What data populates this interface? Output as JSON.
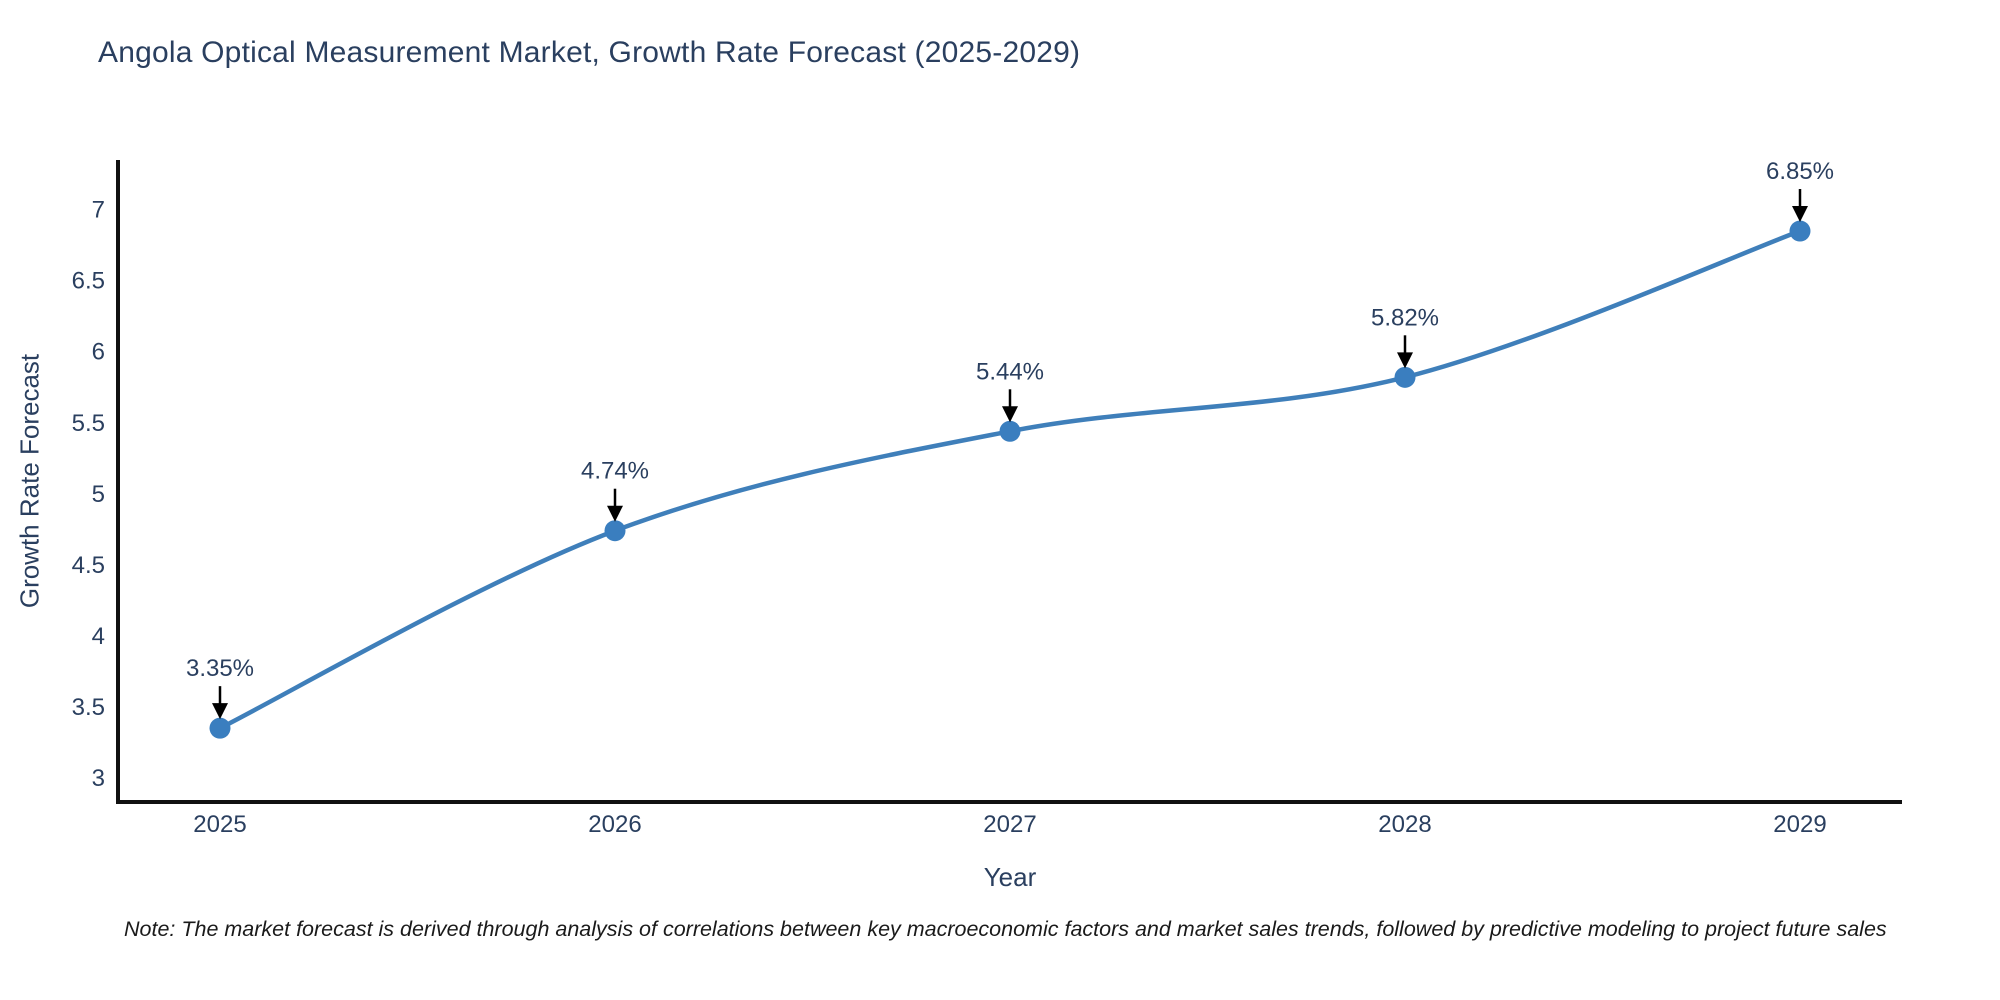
{
  "title": "Angola Optical Measurement Market, Growth Rate Forecast (2025-2029)",
  "note": "Note: The market forecast is derived through analysis of correlations between key macroeconomic factors and market sales trends, followed by predictive modeling to project future sales",
  "chart_data": {
    "type": "line",
    "title": "Angola Optical Measurement Market, Growth Rate Forecast (2025-2029)",
    "x": [
      2025,
      2026,
      2027,
      2028,
      2029
    ],
    "series": [
      {
        "name": "Growth Rate Forecast",
        "values": [
          3.35,
          4.74,
          5.44,
          5.82,
          6.85
        ]
      }
    ],
    "data_labels": [
      "3.35%",
      "4.74%",
      "5.44%",
      "5.82%",
      "6.85%"
    ],
    "xlabel": "Year",
    "ylabel": "Growth Rate Forecast",
    "ylim": [
      2.83,
      7.35
    ],
    "yticks": [
      3,
      3.5,
      4,
      4.5,
      5,
      5.5,
      6,
      6.5,
      7
    ],
    "line_shape": "spline",
    "grid": false,
    "legend_visible": false,
    "colors": {
      "line": "#3f7fba",
      "marker": "#3a7ebf",
      "axis": "#111111",
      "tick_text": "#2a3f5f",
      "annotation_text": "#2a3f5f",
      "annotation_arrow": "#000000",
      "background": "#ffffff"
    }
  }
}
